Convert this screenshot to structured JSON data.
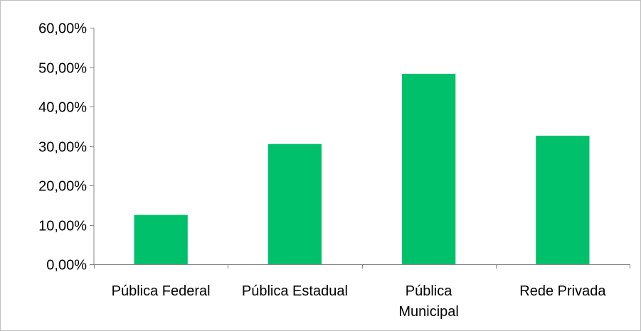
{
  "chart_data": {
    "type": "bar",
    "categories": [
      "Pública Federal",
      "Pública Estadual",
      "Pública Municipal",
      "Rede Privada"
    ],
    "category_lines": [
      [
        "Pública Federal"
      ],
      [
        "Pública Estadual"
      ],
      [
        "Pública",
        "Municipal"
      ],
      [
        "Rede Privada"
      ]
    ],
    "values": [
      12.5,
      30.5,
      48.3,
      32.6
    ],
    "ylim": [
      0,
      60
    ],
    "yticks": [
      0,
      10,
      20,
      30,
      40,
      50,
      60
    ],
    "ytick_labels": [
      "0,00%",
      "10,00%",
      "20,00%",
      "30,00%",
      "40,00%",
      "50,00%",
      "60,00%"
    ],
    "title": "",
    "xlabel": "",
    "ylabel": "",
    "grid": false,
    "legend": "none",
    "bar_color": "#00C06C",
    "axis_color": "#868686"
  }
}
